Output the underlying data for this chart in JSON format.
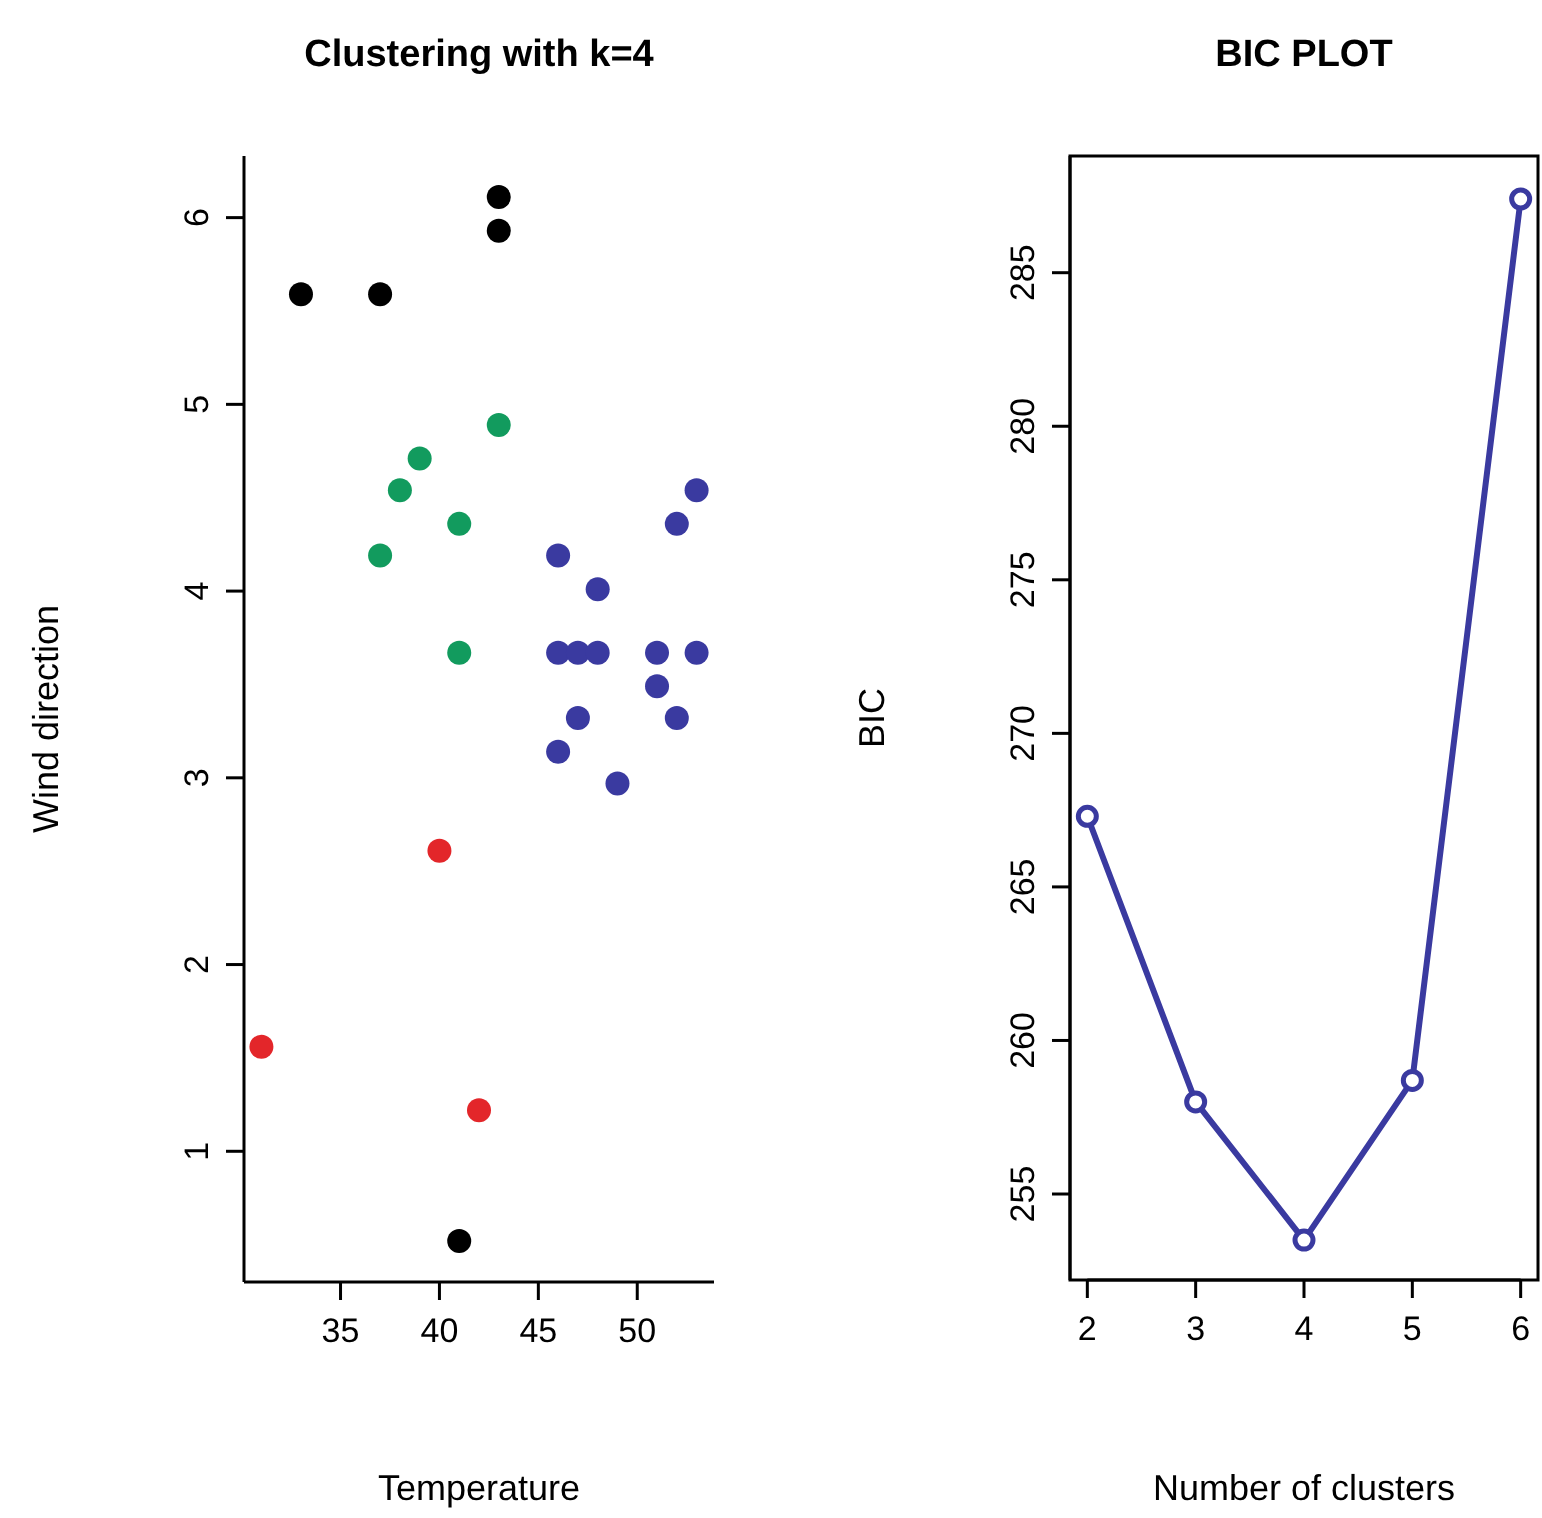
{
  "chart_data": [
    {
      "type": "scatter",
      "title": "Clustering with k=4",
      "xlabel": "Temperature",
      "ylabel": "Wind direction",
      "xlim": [
        30.12,
        53.88
      ],
      "ylim": [
        0.3,
        6.33
      ],
      "xticks": [
        35,
        40,
        45,
        50
      ],
      "yticks": [
        1,
        2,
        3,
        4,
        5,
        6
      ],
      "marker": "circle",
      "series": [
        {
          "color": "#000000",
          "x": [
            43,
            43,
            33,
            37,
            41
          ],
          "values": [
            6.11,
            5.93,
            5.59,
            5.59,
            0.52
          ]
        },
        {
          "color": "#129b5e",
          "x": [
            43,
            39,
            38,
            41,
            37,
            41
          ],
          "values": [
            4.89,
            4.71,
            4.54,
            4.36,
            4.19,
            3.67
          ]
        },
        {
          "color": "#3a3aa0",
          "x": [
            46,
            48,
            46,
            47,
            48,
            51,
            53,
            51,
            47,
            52,
            46,
            49,
            53,
            52
          ],
          "values": [
            4.19,
            4.01,
            3.67,
            3.67,
            3.67,
            3.67,
            3.67,
            3.49,
            3.32,
            3.32,
            3.14,
            2.97,
            4.54,
            4.36
          ]
        },
        {
          "color": "#e3262a",
          "x": [
            40,
            31,
            42
          ],
          "values": [
            2.61,
            1.56,
            1.22
          ]
        }
      ]
    },
    {
      "type": "line",
      "title": "BIC PLOT",
      "xlabel": "Number of clusters",
      "ylabel": "BIC",
      "xlim": [
        1.84,
        6.16
      ],
      "ylim": [
        252.2,
        288.8
      ],
      "xticks": [
        2,
        3,
        4,
        5,
        6
      ],
      "yticks": [
        255,
        260,
        265,
        270,
        275,
        280,
        285
      ],
      "marker": "circle",
      "line_style": "solid",
      "series": [
        {
          "color": "#3a3aa0",
          "x": [
            2,
            3,
            4,
            5,
            6
          ],
          "values": [
            267.3,
            258.0,
            253.5,
            258.7,
            287.4
          ]
        }
      ]
    }
  ]
}
